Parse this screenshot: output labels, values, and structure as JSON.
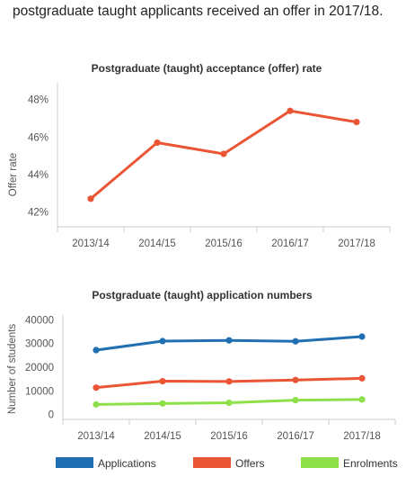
{
  "intro_text": "postgraduate taught applicants received an offer in 2017/18.",
  "chart_data": [
    {
      "type": "line",
      "title": "Postgraduate (taught) acceptance (offer) rate",
      "ylabel": "Offer rate",
      "xlabel": "",
      "categories": [
        "2013/14",
        "2014/15",
        "2015/16",
        "2016/17",
        "2017/18"
      ],
      "series": [
        {
          "values": [
            42.7,
            45.7,
            45.1,
            47.4,
            46.8
          ],
          "color": "#ea5535"
        }
      ],
      "yticks": [
        42,
        44,
        46,
        48
      ],
      "ytick_labels": [
        "42%",
        "44%",
        "46%",
        "48%"
      ],
      "ylim": [
        41.2,
        48.9
      ],
      "grid": false,
      "legend": "none"
    },
    {
      "type": "line",
      "title": "Postgraduate (taught) application numbers",
      "ylabel": "Number of students",
      "xlabel": "",
      "categories": [
        "2013/14",
        "2014/15",
        "2015/16",
        "2016/17",
        "2017/18"
      ],
      "series": [
        {
          "name": "Applications",
          "values": [
            27200,
            31000,
            31300,
            30900,
            32900
          ],
          "color": "#1f6fb2"
        },
        {
          "name": "Offers",
          "values": [
            11400,
            14100,
            14000,
            14600,
            15300
          ],
          "color": "#ea5535"
        },
        {
          "name": "Enrolments",
          "values": [
            4300,
            4700,
            5000,
            6100,
            6400
          ],
          "color": "#8ee04a"
        }
      ],
      "yticks": [
        0,
        10000,
        20000,
        30000,
        40000
      ],
      "ytick_labels": [
        "0",
        "10000",
        "20000",
        "30000",
        "40000"
      ],
      "ylim": [
        -2000,
        42000
      ],
      "grid": false,
      "legend": "bottom"
    }
  ]
}
